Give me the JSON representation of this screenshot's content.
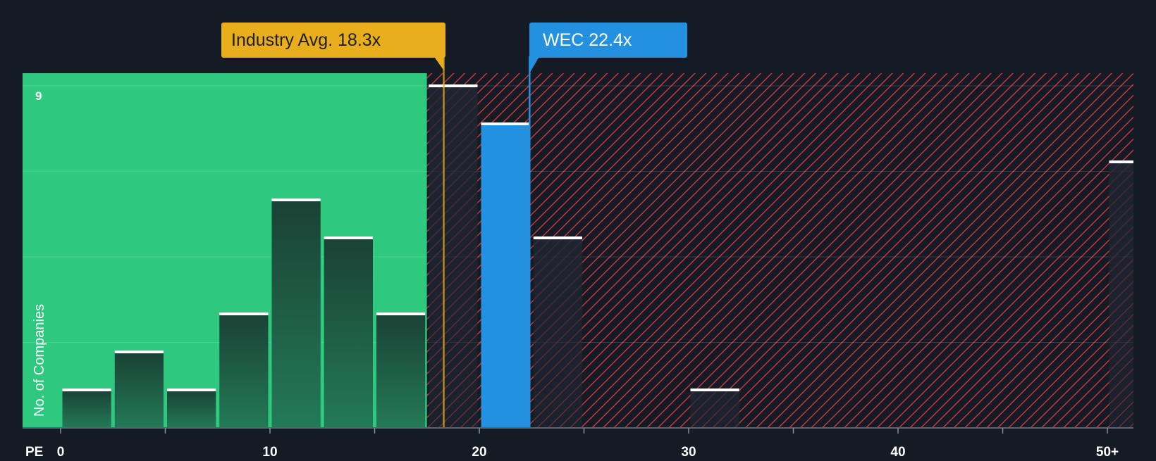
{
  "chart_data": {
    "type": "bar",
    "xlabel": "PE",
    "ylabel": "No. of Companies",
    "x_ticks": [
      "0",
      "10",
      "20",
      "30",
      "40",
      "50+"
    ],
    "y_ticks": [
      "9"
    ],
    "ylim": [
      0,
      9
    ],
    "bins": [
      {
        "from": 0,
        "to": 2.5,
        "value": 1
      },
      {
        "from": 2.5,
        "to": 5,
        "value": 2
      },
      {
        "from": 5,
        "to": 7.5,
        "value": 1
      },
      {
        "from": 7.5,
        "to": 10,
        "value": 3
      },
      {
        "from": 10,
        "to": 12.5,
        "value": 6
      },
      {
        "from": 12.5,
        "to": 15,
        "value": 5
      },
      {
        "from": 15,
        "to": 17.5,
        "value": 3
      },
      {
        "from": 17.5,
        "to": 20,
        "value": 9
      },
      {
        "from": 20,
        "to": 22.5,
        "value": 8,
        "highlight": true
      },
      {
        "from": 22.5,
        "to": 25,
        "value": 5
      },
      {
        "from": 30,
        "to": 32.5,
        "value": 1
      },
      {
        "from": 50,
        "to": 52.5,
        "value": 7
      }
    ],
    "industry_avg": 18.3,
    "company_value": 22.4,
    "industry_label": "Industry Avg. 18.3x",
    "company_label": "WEC 22.4x"
  },
  "colors": {
    "background": "#151b24",
    "undervalued_zone": "#2ec87e",
    "overvalued_hatch": "#c2363c",
    "industry": "#e9ae1b",
    "company": "#2391e0",
    "bar_fill": "#1c4a3c"
  }
}
